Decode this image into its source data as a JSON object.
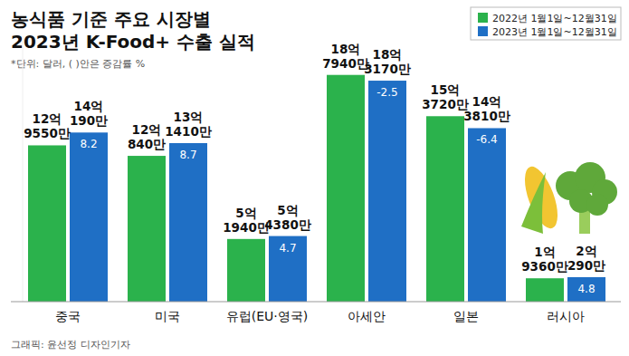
{
  "chart_data": {
    "type": "bar",
    "title": [
      "농식품 기준 주요 시장별",
      "2023년 K-Food+ 수출 실적"
    ],
    "subtitle": "*단위: 달러, ( )안은 증감률 %",
    "caption": "그래픽: 윤선정 디자인기자",
    "categories": [
      "중국",
      "미국",
      "유럽(EU·영국)",
      "아세안",
      "일본",
      "러시아"
    ],
    "series": [
      {
        "name": "2022년 1월1일~12월31일",
        "color": "#2bb24c",
        "values": [
          1295500000,
          1208400000,
          519400000,
          1879400000,
          1537200000,
          193600000
        ],
        "value_labels": [
          "12억 9550만",
          "12억 840만",
          "5억 1940만",
          "18억 7940만",
          "15억 3720만",
          "1억 9360만"
        ]
      },
      {
        "name": "2023년 1월1일~12월31일",
        "color": "#1f6fc5",
        "values": [
          1401900000,
          1314100000,
          543800000,
          1831700000,
          1438100000,
          202900000
        ],
        "value_labels": [
          "14억 190만",
          "13억 1410만",
          "5억 4380만",
          "18억 3170만",
          "14억 3810만",
          "2억 290만"
        ],
        "growth": [
          8.2,
          8.7,
          4.7,
          -2.5,
          -6.4,
          4.8
        ]
      }
    ],
    "ylim": [
      0,
      2200000000
    ],
    "grid": false,
    "tick_labels": false,
    "data_labels": true,
    "legend": "top-right"
  }
}
